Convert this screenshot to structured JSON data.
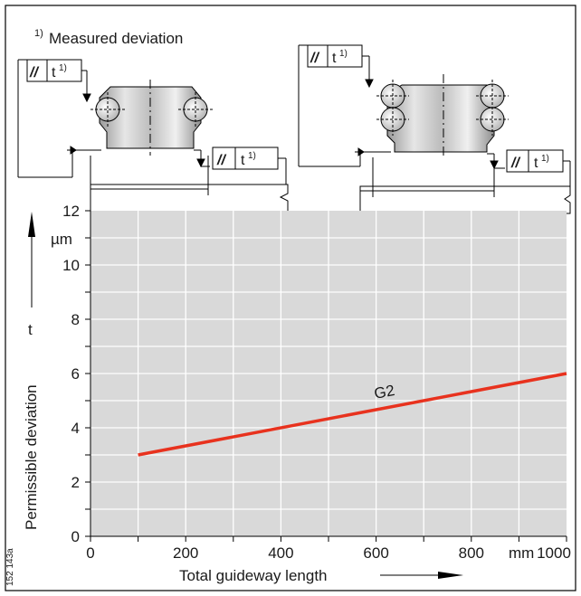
{
  "figure": {
    "footnote_marker": "1)",
    "footnote_text": "Measured deviation",
    "tolerance_symbol": "//",
    "tolerance_label": "t",
    "tolerance_superscript": "1)",
    "figure_number": "152 143a"
  },
  "chart_data": {
    "type": "line",
    "title": "",
    "xlabel": "Total guideway length",
    "xunit": "mm",
    "ylabel": "Permissible deviation",
    "ysymbol": "t",
    "yunit": "µm",
    "xlim": [
      0,
      1000
    ],
    "ylim": [
      0,
      12
    ],
    "xticks": [
      0,
      200,
      400,
      600,
      800,
      1000
    ],
    "yticks": [
      0,
      2,
      4,
      6,
      8,
      10,
      12
    ],
    "grid": true,
    "background_color": "#d9d9d9",
    "series": [
      {
        "name": "G2",
        "color": "#e8321e",
        "x": [
          100,
          1000
        ],
        "y": [
          3,
          6
        ]
      }
    ]
  }
}
